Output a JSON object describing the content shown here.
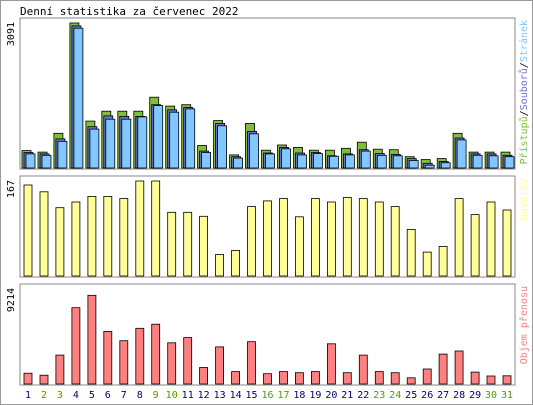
{
  "chart_data": {
    "type": "bar",
    "title": "Denní statistika za červenec 2022",
    "categories": [
      "1",
      "2",
      "3",
      "4",
      "5",
      "6",
      "7",
      "8",
      "9",
      "10",
      "11",
      "12",
      "13",
      "14",
      "15",
      "16",
      "17",
      "18",
      "19",
      "20",
      "21",
      "22",
      "23",
      "24",
      "25",
      "26",
      "27",
      "28",
      "29",
      "30",
      "31"
    ],
    "weekend_days": [
      "2",
      "3",
      "9",
      "10",
      "16",
      "17",
      "23",
      "24",
      "30",
      "31"
    ],
    "colors": {
      "pristupu": "#7dbf3a",
      "souboru": "#7070d8",
      "stranek": "#80c8ff",
      "navstev": "#ffff99",
      "objem": "#ff8080",
      "weekday_label": "#000080",
      "weekend_label": "#559900",
      "frame": "#888888"
    },
    "panels": [
      {
        "name": "requests",
        "ymax_label": "3091",
        "ylim": [
          0,
          3091
        ],
        "legend": [
          {
            "label": "Přístupů",
            "color": "#7dbf3a"
          },
          {
            "label": "Souborů",
            "color": "#7070d8"
          },
          {
            "label": "Stránek",
            "color": "#80c8ff"
          }
        ],
        "legend_separator": "/",
        "series": [
          {
            "name": "Přístupů",
            "values": [
              370,
              340,
              740,
              3091,
              1000,
              1210,
              1210,
              1210,
              1510,
              1320,
              1350,
              480,
              1010,
              280,
              950,
              380,
              490,
              440,
              380,
              380,
              420,
              550,
              400,
              390,
              240,
              180,
              200,
              740,
              340,
              340,
              340
            ]
          },
          {
            "name": "Souborů",
            "values": [
              330,
              300,
              620,
              3030,
              880,
              1110,
              1100,
              1100,
              1350,
              1240,
              1290,
              360,
              950,
              240,
              780,
              320,
              440,
              320,
              330,
              260,
              300,
              390,
              310,
              290,
              200,
              100,
              140,
              640,
              300,
              300,
              270
            ]
          },
          {
            "name": "Stránek",
            "values": [
              300,
              270,
              570,
              2980,
              830,
              1040,
              1040,
              1090,
              1330,
              1190,
              1260,
              330,
              900,
              210,
              730,
              300,
              410,
              280,
              310,
              250,
              280,
              360,
              270,
              260,
              160,
              60,
              110,
              600,
              270,
              260,
              240
            ]
          }
        ]
      },
      {
        "name": "visits",
        "ymax_label": "167",
        "ylim": [
          0,
          167
        ],
        "legend": [
          {
            "label": "Návštěv",
            "color": "#ffff99"
          }
        ],
        "series": [
          {
            "name": "Návštěv",
            "values": [
              160,
              148,
              120,
              130,
              140,
              140,
              136,
              167,
              167,
              112,
              112,
              105,
              38,
              45,
              122,
              132,
              136,
              104,
              136,
              130,
              138,
              136,
              130,
              122,
              82,
              42,
              52,
              136,
              108,
              130,
              116
            ]
          }
        ]
      },
      {
        "name": "volume",
        "ymax_label": "9214",
        "ylim": [
          0,
          9214
        ],
        "legend": [
          {
            "label": "Objem přenosu",
            "color": "#ff8080"
          }
        ],
        "series": [
          {
            "name": "Objem přenosu",
            "values": [
              1050,
              850,
              2800,
              7400,
              8600,
              5100,
              4200,
              5400,
              5800,
              4000,
              4500,
              1600,
              3600,
              1200,
              4100,
              1000,
              1200,
              1100,
              1200,
              3900,
              1100,
              2800,
              1200,
              1100,
              600,
              1450,
              2900,
              3200,
              1150,
              780,
              800
            ]
          }
        ]
      }
    ]
  }
}
